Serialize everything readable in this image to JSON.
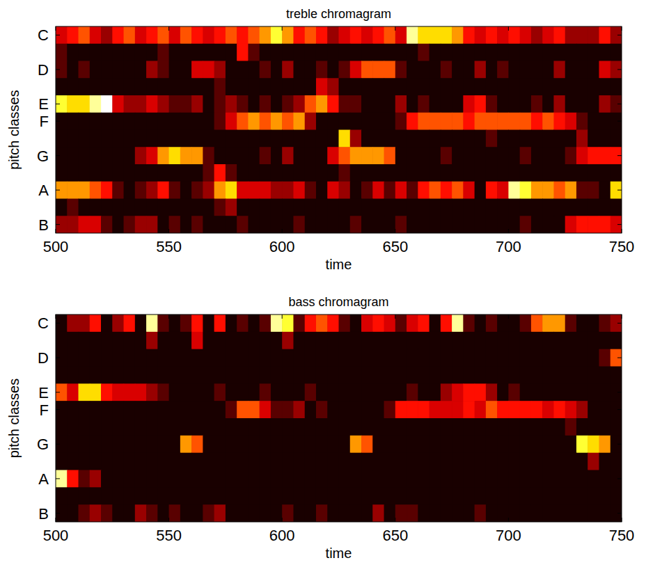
{
  "chart_data": [
    {
      "type": "heatmap",
      "title": "treble chromagram",
      "x_label": "time",
      "y_label": "pitch classes",
      "xlim": [
        500,
        750
      ],
      "xticks": [
        500,
        550,
        600,
        650,
        700,
        750
      ],
      "ylim": [
        0.5,
        12.5
      ],
      "yticks": [
        {
          "value": 1,
          "label": "C"
        },
        {
          "value": 3,
          "label": "D"
        },
        {
          "value": 5,
          "label": "E"
        },
        {
          "value": 6,
          "label": "F"
        },
        {
          "value": 8,
          "label": "G"
        },
        {
          "value": 10,
          "label": "A"
        },
        {
          "value": 12,
          "label": "B"
        }
      ],
      "zlim": [
        0,
        10
      ],
      "x": [
        500,
        505,
        510,
        515,
        520,
        525,
        530,
        535,
        540,
        545,
        550,
        555,
        560,
        565,
        570,
        575,
        580,
        585,
        590,
        595,
        600,
        605,
        610,
        615,
        620,
        625,
        630,
        635,
        640,
        645,
        650,
        655,
        660,
        665,
        670,
        675,
        680,
        685,
        690,
        695,
        700,
        705,
        710,
        715,
        720,
        725,
        730,
        735,
        740,
        745
      ],
      "y": [
        1,
        2,
        3,
        4,
        5,
        6,
        7,
        8,
        9,
        10,
        11,
        12
      ],
      "cells": [
        [
          3,
          4,
          5,
          3,
          2,
          4,
          5,
          3,
          4,
          5,
          3,
          5,
          4,
          3,
          4,
          5,
          4,
          5,
          6,
          8,
          6,
          4,
          5,
          4,
          2,
          3,
          4,
          3,
          4,
          5,
          3,
          9,
          7,
          7,
          7,
          6,
          4,
          3,
          4,
          3,
          4,
          3,
          2,
          3,
          4,
          2,
          2,
          2,
          4,
          2
        ],
        [
          1,
          0,
          0,
          0,
          0,
          0,
          0,
          0,
          0,
          1,
          0,
          0,
          0,
          0,
          0,
          0,
          4,
          1,
          0,
          0,
          0,
          0,
          0,
          0,
          0,
          0,
          0,
          0,
          0,
          0,
          0,
          0,
          1,
          0,
          0,
          0,
          0,
          0,
          0,
          0,
          0,
          0,
          0,
          0,
          0,
          0,
          0,
          0,
          0,
          0
        ],
        [
          1,
          0,
          1,
          0,
          0,
          0,
          0,
          0,
          2,
          1,
          0,
          0,
          3,
          3,
          2,
          0,
          0,
          0,
          1,
          0,
          2,
          0,
          0,
          1,
          0,
          1,
          3,
          5,
          5,
          5,
          1,
          0,
          0,
          0,
          1,
          0,
          0,
          2,
          0,
          1,
          0,
          0,
          0,
          0,
          2,
          0,
          0,
          0,
          3,
          2
        ],
        [
          0,
          0,
          0,
          0,
          0,
          0,
          0,
          0,
          0,
          0,
          0,
          0,
          0,
          0,
          1,
          0,
          0,
          0,
          0,
          0,
          0,
          0,
          0,
          3,
          2,
          0,
          0,
          0,
          0,
          0,
          0,
          0,
          0,
          0,
          0,
          0,
          0,
          0,
          0,
          0,
          0,
          0,
          0,
          0,
          0,
          0,
          0,
          0,
          0,
          0
        ],
        [
          8,
          7,
          7,
          9,
          10,
          3,
          2,
          2,
          3,
          2,
          1,
          1,
          2,
          0,
          1,
          2,
          1,
          0,
          1,
          0,
          1,
          2,
          5,
          6,
          4,
          1,
          1,
          0,
          0,
          0,
          2,
          0,
          1,
          0,
          0,
          0,
          3,
          4,
          1,
          0,
          0,
          0,
          1,
          0,
          2,
          0,
          0,
          0,
          2,
          1
        ],
        [
          0,
          0,
          0,
          0,
          0,
          0,
          0,
          0,
          0,
          0,
          0,
          0,
          0,
          0,
          1,
          3,
          5,
          6,
          5,
          6,
          5,
          6,
          2,
          0,
          0,
          0,
          0,
          0,
          0,
          0,
          1,
          4,
          5,
          5,
          5,
          5,
          4,
          5,
          5,
          5,
          5,
          5,
          4,
          5,
          4,
          3,
          1,
          0,
          0,
          0
        ],
        [
          0,
          0,
          0,
          0,
          0,
          0,
          0,
          0,
          0,
          0,
          0,
          0,
          0,
          0,
          0,
          0,
          0,
          0,
          0,
          0,
          0,
          0,
          0,
          0,
          0,
          7,
          2,
          0,
          0,
          0,
          0,
          0,
          0,
          0,
          0,
          0,
          0,
          0,
          1,
          0,
          0,
          0,
          0,
          0,
          0,
          0,
          2,
          0,
          0,
          0
        ],
        [
          0,
          0,
          0,
          0,
          0,
          0,
          0,
          2,
          3,
          6,
          7,
          6,
          6,
          1,
          0,
          0,
          0,
          0,
          1,
          0,
          2,
          0,
          0,
          0,
          3,
          5,
          6,
          6,
          6,
          5,
          0,
          0,
          0,
          0,
          1,
          0,
          0,
          0,
          0,
          0,
          0,
          1,
          0,
          0,
          0,
          1,
          3,
          4,
          4,
          4
        ],
        [
          0,
          0,
          0,
          0,
          0,
          0,
          0,
          0,
          0,
          0,
          0,
          0,
          0,
          1,
          4,
          1,
          0,
          0,
          0,
          0,
          0,
          0,
          0,
          0,
          0,
          1,
          0,
          0,
          0,
          0,
          0,
          0,
          0,
          0,
          0,
          0,
          0,
          0,
          0,
          0,
          0,
          0,
          0,
          0,
          0,
          0,
          0,
          0,
          0,
          0
        ],
        [
          6,
          6,
          6,
          5,
          4,
          1,
          0,
          1,
          2,
          4,
          1,
          0,
          1,
          2,
          6,
          7,
          3,
          3,
          3,
          2,
          2,
          3,
          1,
          0,
          3,
          2,
          0,
          1,
          3,
          1,
          3,
          1,
          4,
          5,
          4,
          5,
          3,
          0,
          4,
          3,
          9,
          8,
          6,
          6,
          5,
          6,
          1,
          1,
          0,
          7
        ],
        [
          0,
          1,
          0,
          0,
          0,
          0,
          0,
          0,
          0,
          0,
          0,
          0,
          0,
          0,
          1,
          2,
          0,
          0,
          0,
          0,
          0,
          0,
          0,
          0,
          0,
          0,
          0,
          0,
          0,
          0,
          0,
          0,
          0,
          0,
          0,
          0,
          0,
          0,
          0,
          0,
          0,
          0,
          0,
          0,
          0,
          0,
          0,
          0,
          0,
          0
        ],
        [
          2,
          2,
          3,
          3,
          1,
          0,
          1,
          2,
          2,
          0,
          1,
          0,
          1,
          0,
          0,
          0,
          1,
          0,
          0,
          0,
          0,
          1,
          0,
          0,
          0,
          0,
          1,
          0,
          0,
          0,
          1,
          0,
          0,
          0,
          0,
          0,
          0,
          0,
          0,
          0,
          0,
          1,
          0,
          0,
          0,
          3,
          4,
          4,
          4,
          3
        ]
      ]
    },
    {
      "type": "heatmap",
      "title": "bass chromagram",
      "x_label": "time",
      "y_label": "pitch classes",
      "xlim": [
        500,
        750
      ],
      "xticks": [
        500,
        550,
        600,
        650,
        700,
        750
      ],
      "ylim": [
        0.5,
        12.5
      ],
      "yticks": [
        {
          "value": 1,
          "label": "C"
        },
        {
          "value": 3,
          "label": "D"
        },
        {
          "value": 5,
          "label": "E"
        },
        {
          "value": 6,
          "label": "F"
        },
        {
          "value": 8,
          "label": "G"
        },
        {
          "value": 10,
          "label": "A"
        },
        {
          "value": 12,
          "label": "B"
        }
      ],
      "zlim": [
        0,
        10
      ],
      "x": [
        500,
        505,
        510,
        515,
        520,
        525,
        530,
        535,
        540,
        545,
        550,
        555,
        560,
        565,
        570,
        575,
        580,
        585,
        590,
        595,
        600,
        605,
        610,
        615,
        620,
        625,
        630,
        635,
        640,
        645,
        650,
        655,
        660,
        665,
        670,
        675,
        680,
        685,
        690,
        695,
        700,
        705,
        710,
        715,
        720,
        725,
        730,
        735,
        740,
        745
      ],
      "y": [
        1,
        2,
        3,
        4,
        5,
        6,
        7,
        8,
        9,
        10,
        11,
        12
      ],
      "cells": [
        [
          0,
          2,
          2,
          4,
          0,
          2,
          4,
          0,
          9,
          1,
          0,
          1,
          4,
          0,
          4,
          0,
          1,
          0,
          1,
          9,
          8,
          1,
          4,
          5,
          4,
          1,
          0,
          3,
          4,
          3,
          1,
          3,
          4,
          0,
          4,
          9,
          1,
          0,
          1,
          0,
          0,
          1,
          5,
          6,
          6,
          1,
          0,
          0,
          1,
          2
        ],
        [
          0,
          0,
          0,
          0,
          0,
          0,
          0,
          0,
          2,
          0,
          0,
          0,
          3,
          0,
          0,
          0,
          0,
          0,
          0,
          0,
          2,
          0,
          0,
          0,
          0,
          0,
          0,
          0,
          0,
          0,
          0,
          0,
          0,
          0,
          0,
          0,
          0,
          0,
          0,
          0,
          0,
          0,
          0,
          0,
          0,
          0,
          0,
          0,
          0,
          0
        ],
        [
          0,
          0,
          0,
          0,
          0,
          0,
          0,
          0,
          0,
          0,
          0,
          0,
          0,
          0,
          0,
          0,
          0,
          0,
          0,
          0,
          0,
          0,
          0,
          0,
          0,
          0,
          0,
          0,
          0,
          0,
          0,
          0,
          0,
          0,
          0,
          0,
          0,
          0,
          0,
          0,
          0,
          0,
          0,
          0,
          0,
          0,
          0,
          0,
          1,
          5
        ],
        [
          0,
          0,
          0,
          0,
          0,
          0,
          0,
          0,
          0,
          0,
          0,
          0,
          0,
          0,
          0,
          0,
          0,
          0,
          0,
          0,
          0,
          0,
          0,
          0,
          0,
          0,
          0,
          0,
          0,
          0,
          0,
          0,
          0,
          0,
          0,
          0,
          0,
          0,
          0,
          0,
          0,
          0,
          0,
          0,
          0,
          0,
          0,
          0,
          0,
          0
        ],
        [
          5,
          3,
          7,
          7,
          4,
          3,
          3,
          3,
          2,
          1,
          0,
          0,
          0,
          0,
          1,
          0,
          0,
          0,
          1,
          0,
          0,
          0,
          1,
          0,
          0,
          0,
          0,
          0,
          0,
          0,
          0,
          1,
          0,
          0,
          2,
          3,
          4,
          4,
          2,
          0,
          1,
          0,
          0,
          0,
          0,
          0,
          0,
          0,
          0,
          0
        ],
        [
          0,
          0,
          0,
          0,
          0,
          0,
          0,
          0,
          0,
          0,
          0,
          0,
          0,
          0,
          0,
          1,
          5,
          5,
          3,
          1,
          1,
          2,
          0,
          1,
          0,
          0,
          0,
          0,
          0,
          1,
          4,
          4,
          4,
          3,
          3,
          3,
          4,
          3,
          5,
          4,
          4,
          4,
          4,
          3,
          4,
          3,
          2,
          0,
          0,
          0
        ],
        [
          0,
          0,
          0,
          0,
          0,
          0,
          0,
          0,
          0,
          0,
          0,
          0,
          0,
          0,
          0,
          0,
          0,
          0,
          0,
          0,
          0,
          0,
          0,
          0,
          0,
          0,
          0,
          0,
          0,
          0,
          0,
          0,
          0,
          0,
          0,
          0,
          0,
          0,
          0,
          0,
          0,
          0,
          0,
          0,
          0,
          1,
          0,
          0,
          0,
          0
        ],
        [
          0,
          0,
          0,
          0,
          0,
          0,
          0,
          0,
          0,
          0,
          0,
          6,
          5,
          0,
          0,
          0,
          0,
          0,
          0,
          0,
          0,
          0,
          0,
          0,
          0,
          0,
          6,
          5,
          0,
          0,
          0,
          0,
          0,
          0,
          0,
          0,
          0,
          0,
          0,
          0,
          0,
          0,
          0,
          0,
          0,
          0,
          8,
          7,
          6,
          0
        ],
        [
          0,
          0,
          0,
          0,
          0,
          0,
          0,
          0,
          0,
          0,
          0,
          0,
          0,
          0,
          0,
          0,
          0,
          0,
          0,
          0,
          0,
          0,
          0,
          0,
          0,
          0,
          0,
          0,
          0,
          0,
          0,
          0,
          0,
          0,
          0,
          0,
          0,
          0,
          0,
          0,
          0,
          0,
          0,
          0,
          0,
          0,
          0,
          2,
          0,
          0
        ],
        [
          9,
          4,
          1,
          2,
          0,
          0,
          0,
          0,
          0,
          0,
          0,
          0,
          0,
          0,
          0,
          0,
          0,
          0,
          0,
          0,
          0,
          0,
          0,
          0,
          0,
          0,
          0,
          0,
          0,
          0,
          0,
          0,
          0,
          0,
          0,
          0,
          0,
          0,
          0,
          0,
          0,
          0,
          0,
          0,
          0,
          0,
          0,
          0,
          0,
          0
        ],
        [
          0,
          0,
          0,
          0,
          0,
          0,
          0,
          0,
          0,
          0,
          0,
          0,
          0,
          0,
          0,
          0,
          0,
          0,
          0,
          0,
          0,
          0,
          0,
          0,
          0,
          0,
          0,
          0,
          0,
          0,
          0,
          0,
          0,
          0,
          0,
          0,
          0,
          0,
          0,
          0,
          0,
          0,
          0,
          0,
          0,
          0,
          0,
          0,
          0,
          0
        ],
        [
          0,
          0,
          1,
          2,
          1,
          0,
          0,
          2,
          1,
          0,
          1,
          0,
          0,
          1,
          2,
          0,
          0,
          0,
          0,
          0,
          1,
          0,
          0,
          1,
          0,
          0,
          0,
          0,
          2,
          0,
          1,
          1,
          0,
          0,
          0,
          0,
          0,
          1,
          0,
          0,
          0,
          0,
          0,
          0,
          0,
          0,
          0,
          0,
          0,
          0
        ]
      ]
    }
  ]
}
